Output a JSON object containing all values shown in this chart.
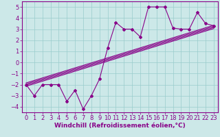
{
  "title": "",
  "xlabel": "Windchill (Refroidissement éolien,°C)",
  "ylabel": "",
  "bg_color": "#cce8e8",
  "line_color": "#880088",
  "grid_color": "#99cccc",
  "xlim": [
    -0.5,
    23.5
  ],
  "ylim": [
    -4.5,
    5.5
  ],
  "xticks": [
    0,
    1,
    2,
    3,
    4,
    5,
    6,
    7,
    8,
    9,
    10,
    11,
    12,
    13,
    14,
    15,
    16,
    17,
    18,
    19,
    20,
    21,
    22,
    23
  ],
  "yticks": [
    -4,
    -3,
    -2,
    -1,
    0,
    1,
    2,
    3,
    4,
    5
  ],
  "data_x": [
    0,
    1,
    2,
    3,
    4,
    5,
    6,
    7,
    8,
    9,
    10,
    11,
    12,
    13,
    14,
    15,
    16,
    17,
    18,
    19,
    20,
    21,
    22,
    23
  ],
  "data_y": [
    -2.0,
    -3.0,
    -2.0,
    -2.0,
    -2.0,
    -3.5,
    -2.5,
    -4.2,
    -3.0,
    -1.5,
    1.3,
    3.6,
    3.0,
    3.0,
    2.3,
    5.0,
    5.0,
    5.0,
    3.1,
    3.0,
    3.0,
    4.5,
    3.5,
    3.3
  ],
  "reg_lines": [
    {
      "x0": 0,
      "y0": -2.15,
      "x1": 23,
      "y1": 3.05
    },
    {
      "x0": 0,
      "y0": -2.05,
      "x1": 23,
      "y1": 3.15
    },
    {
      "x0": 0,
      "y0": -1.95,
      "x1": 23,
      "y1": 3.25
    },
    {
      "x0": 0,
      "y0": -1.85,
      "x1": 23,
      "y1": 3.35
    }
  ],
  "tick_fontsize": 6,
  "xlabel_fontsize": 6.5
}
